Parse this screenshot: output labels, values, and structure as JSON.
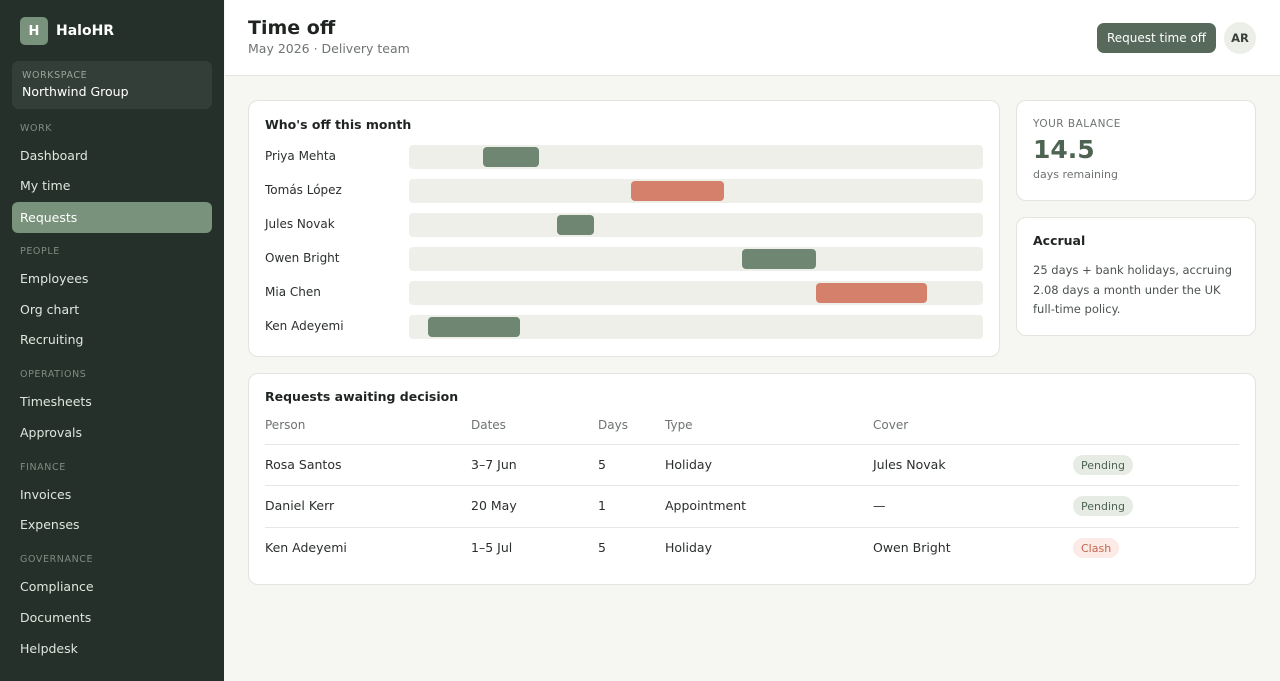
{
  "app": {
    "logo_letter": "H",
    "name": "HaloHR"
  },
  "workspace": {
    "label": "WORKSPACE",
    "name": "Northwind Group"
  },
  "nav": {
    "sections": [
      {
        "label": "WORK",
        "items": [
          "Dashboard",
          "My time",
          "Requests"
        ]
      },
      {
        "label": "PEOPLE",
        "items": [
          "Employees",
          "Org chart",
          "Recruiting"
        ]
      },
      {
        "label": "OPERATIONS",
        "items": [
          "Timesheets",
          "Approvals"
        ]
      },
      {
        "label": "FINANCE",
        "items": [
          "Invoices",
          "Expenses"
        ]
      },
      {
        "label": "GOVERNANCE",
        "items": [
          "Compliance",
          "Documents",
          "Helpdesk"
        ]
      }
    ],
    "active_item": "Requests"
  },
  "header": {
    "title": "Time off",
    "subtitle": "May 2026 · Delivery team",
    "request_button": "Request time off",
    "avatar_initials": "AR"
  },
  "calendar": {
    "title": "Who's off this month",
    "rows": [
      {
        "name": "Priya Mehta",
        "start_fraction": 0.129,
        "end_fraction": 0.227,
        "kind": "approved"
      },
      {
        "name": "Tomás López",
        "start_fraction": 0.387,
        "end_fraction": 0.549,
        "kind": "conflict"
      },
      {
        "name": "Jules Novak",
        "start_fraction": 0.258,
        "end_fraction": 0.323,
        "kind": "approved"
      },
      {
        "name": "Owen Bright",
        "start_fraction": 0.58,
        "end_fraction": 0.709,
        "kind": "approved"
      },
      {
        "name": "Mia Chen",
        "start_fraction": 0.709,
        "end_fraction": 0.903,
        "kind": "conflict"
      },
      {
        "name": "Ken Adeyemi",
        "start_fraction": 0.033,
        "end_fraction": 0.193,
        "kind": "approved"
      }
    ]
  },
  "balance": {
    "label": "YOUR BALANCE",
    "value": "14.5",
    "unit": "days remaining"
  },
  "accrual": {
    "title": "Accrual",
    "text": "25 days + bank holidays, accruing 2.08 days a month under the UK full-time policy."
  },
  "requests": {
    "title": "Requests awaiting decision",
    "columns": [
      "Person",
      "Dates",
      "Days",
      "Type",
      "Cover"
    ],
    "rows": [
      {
        "person": "Rosa Santos",
        "dates": "3–7 Jun",
        "days": "5",
        "type": "Holiday",
        "cover": "Jules Novak",
        "status": "Pending",
        "status_kind": "pending"
      },
      {
        "person": "Daniel Kerr",
        "dates": "20 May",
        "days": "1",
        "type": "Appointment",
        "cover": "—",
        "status": "Pending",
        "status_kind": "pending"
      },
      {
        "person": "Ken Adeyemi",
        "dates": "1–5 Jul",
        "days": "5",
        "type": "Holiday",
        "cover": "Owen Bright",
        "status": "Clash",
        "status_kind": "clash"
      }
    ]
  },
  "colors": {
    "approved": "#6f8772",
    "conflict": "#d4806a",
    "accent": "#56695a",
    "sidebar_bg": "#26302a"
  }
}
